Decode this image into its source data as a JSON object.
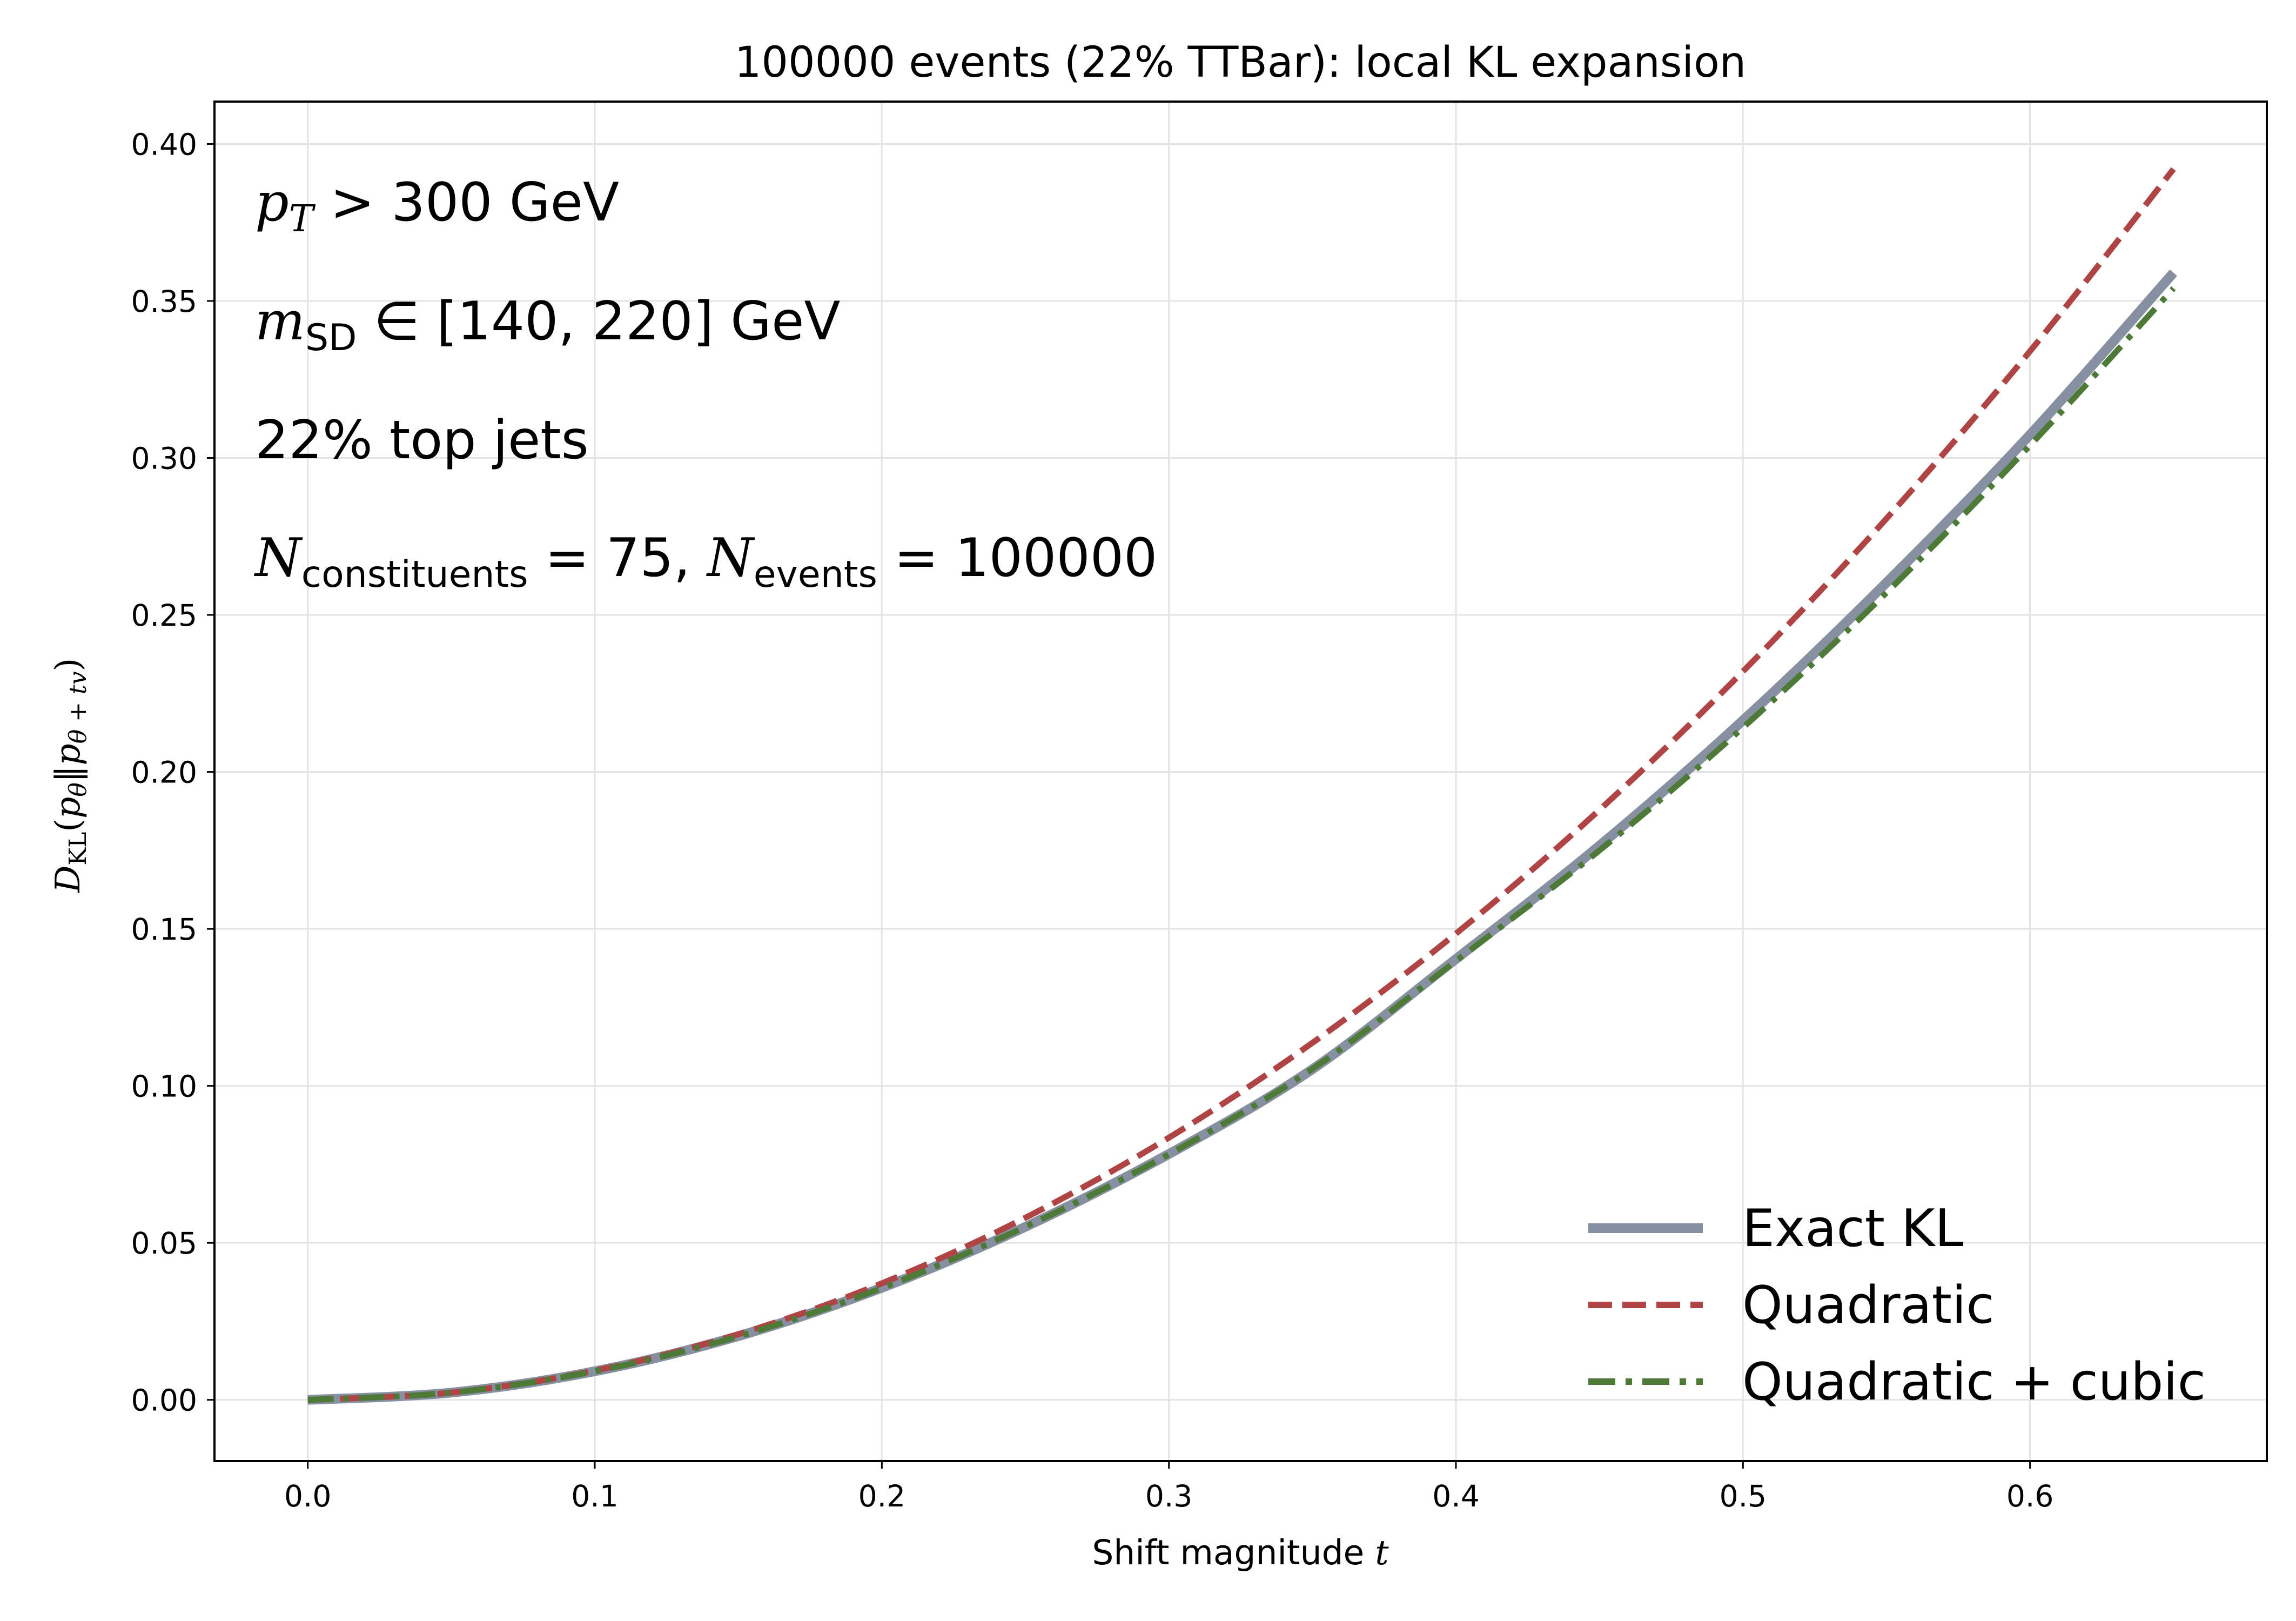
{
  "chart_data": {
    "type": "line",
    "title": "100000 events (22% TTBar): local KL expansion",
    "xlabel": {
      "text": "Shift magnitude ",
      "var": "t"
    },
    "ylabel": {
      "D": "D",
      "D_sub": "KL",
      "open": "(",
      "p1": "p",
      "p1_sub": "θ",
      "sep": "‖",
      "p2": "p",
      "p2_sub": "θ + tv",
      "close": ")"
    },
    "xlim": [
      -0.0325,
      0.6825
    ],
    "ylim": [
      -0.0195,
      0.4135
    ],
    "x_ticks": [
      0.0,
      0.1,
      0.2,
      0.3,
      0.4,
      0.5,
      0.6
    ],
    "x_tick_labels": [
      "0.0",
      "0.1",
      "0.2",
      "0.3",
      "0.4",
      "0.5",
      "0.6"
    ],
    "y_ticks": [
      0.0,
      0.05,
      0.1,
      0.15,
      0.2,
      0.25,
      0.3,
      0.35,
      0.4
    ],
    "y_tick_labels": [
      "0.00",
      "0.05",
      "0.10",
      "0.15",
      "0.20",
      "0.25",
      "0.30",
      "0.35",
      "0.40"
    ],
    "grid": true,
    "legend_position": "bottom-right",
    "annotations": {
      "pt": {
        "var": "p",
        "sub": "T",
        "rest": " > 300 GeV"
      },
      "msd": {
        "var": "m",
        "sub": "SD",
        "rest": " ∈ [140, 220] GeV"
      },
      "top": {
        "text": "22% top jets"
      },
      "n": {
        "var1": "N",
        "sub1": "constituents",
        "mid": " = 75, ",
        "var2": "N",
        "sub2": "events",
        "rest": " = 100000"
      }
    },
    "series": [
      {
        "name": "Exact KL",
        "color": "#8690a0",
        "style": "solid",
        "x": [
          0.0,
          0.05,
          0.1,
          0.15,
          0.2,
          0.25,
          0.3,
          0.35,
          0.4,
          0.45,
          0.5,
          0.55,
          0.6,
          0.65
        ],
        "y": [
          0.0,
          0.0023,
          0.0091,
          0.0203,
          0.0357,
          0.0551,
          0.0783,
          0.1053,
          0.1404,
          0.1765,
          0.2164,
          0.2603,
          0.3074,
          0.359
        ]
      },
      {
        "name": "Quadratic",
        "color": "#b04445",
        "style": "dashed",
        "x": [
          0.0,
          0.05,
          0.1,
          0.15,
          0.2,
          0.25,
          0.3,
          0.35,
          0.4,
          0.45,
          0.5,
          0.55,
          0.6,
          0.65
        ],
        "y": [
          0.0,
          0.0023,
          0.0093,
          0.0209,
          0.0371,
          0.058,
          0.0835,
          0.1137,
          0.1485,
          0.1879,
          0.232,
          0.2807,
          0.334,
          0.392
        ]
      },
      {
        "name": "Quadratic + cubic",
        "color": "#4e7a38",
        "style": "dashdot",
        "x": [
          0.0,
          0.05,
          0.1,
          0.15,
          0.2,
          0.25,
          0.3,
          0.35,
          0.4,
          0.45,
          0.5,
          0.55,
          0.6,
          0.65
        ],
        "y": [
          0.0,
          0.0023,
          0.0091,
          0.0202,
          0.0356,
          0.0551,
          0.0782,
          0.1054,
          0.1398,
          0.175,
          0.2141,
          0.2571,
          0.304,
          0.354
        ]
      }
    ]
  }
}
